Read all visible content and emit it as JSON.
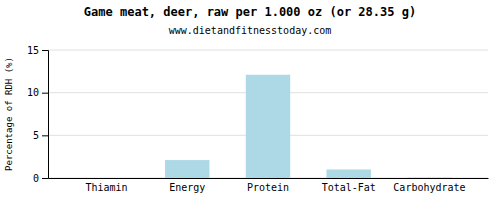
{
  "chart_data": {
    "type": "bar",
    "title": "Game meat, deer, raw per 1.000 oz (or 28.35 g)",
    "subtitle": "www.dietandfitnesstoday.com",
    "categories": [
      "Thiamin",
      "Energy",
      "Protein",
      "Total-Fat",
      "Carbohydrate"
    ],
    "values": [
      0.0,
      2.1,
      12.1,
      1.0,
      0.05
    ],
    "color": "#add8e6",
    "ylabel": "Percentage of RDH (%)",
    "ylim": [
      0,
      15
    ],
    "yticks": [
      0,
      5,
      10,
      15
    ],
    "grid": true
  }
}
